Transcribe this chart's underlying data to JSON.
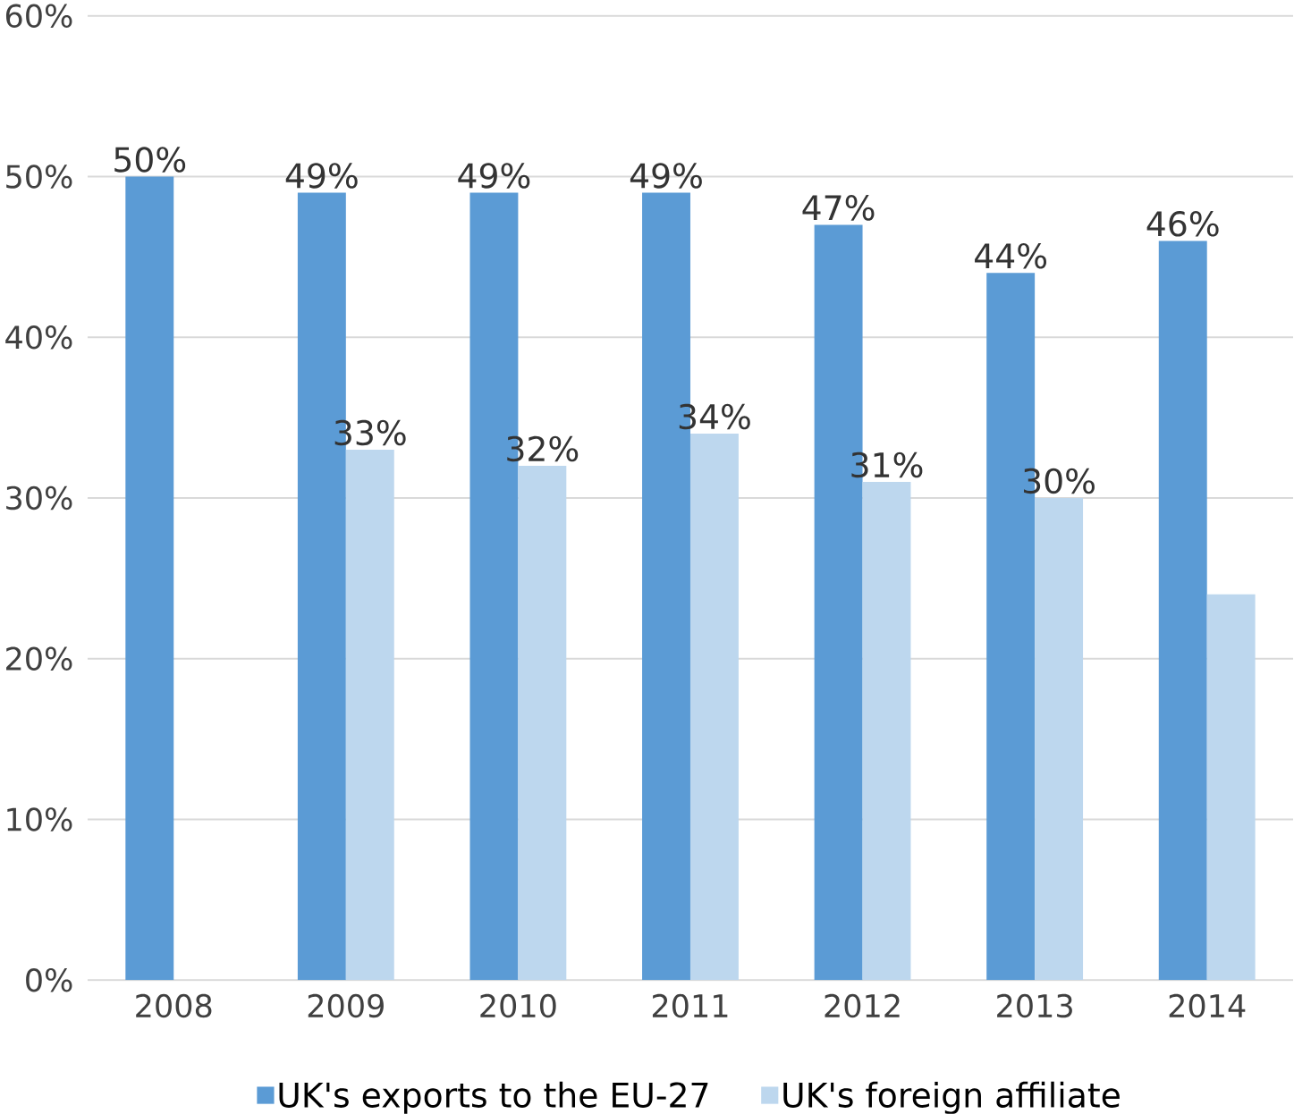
{
  "chart_data": {
    "type": "bar",
    "categories": [
      "2008",
      "2009",
      "2010",
      "2011",
      "2012",
      "2013",
      "2014"
    ],
    "series": [
      {
        "name": "UK's exports to the EU-27",
        "color": "#5b9bd5",
        "values": [
          50,
          49,
          49,
          49,
          47,
          44,
          46
        ],
        "value_labels": [
          "50%",
          "49%",
          "49%",
          "49%",
          "47%",
          "44%",
          "46%"
        ]
      },
      {
        "name": "UK's foreign affiliate",
        "color": "#bdd7ee",
        "values": [
          null,
          33,
          32,
          34,
          31,
          30,
          24
        ],
        "value_labels": [
          null,
          "33%",
          "32%",
          "34%",
          "31%",
          "30%",
          null
        ]
      }
    ],
    "ylim": [
      0,
      60
    ],
    "yticks": [
      {
        "value": 0,
        "label": "0%"
      },
      {
        "value": 10,
        "label": "10%"
      },
      {
        "value": 20,
        "label": "20%"
      },
      {
        "value": 30,
        "label": "30%"
      },
      {
        "value": 40,
        "label": "40%"
      },
      {
        "value": 50,
        "label": "50%"
      },
      {
        "value": 60,
        "label": "60%"
      }
    ],
    "grid": "y",
    "legend": "bottom"
  }
}
